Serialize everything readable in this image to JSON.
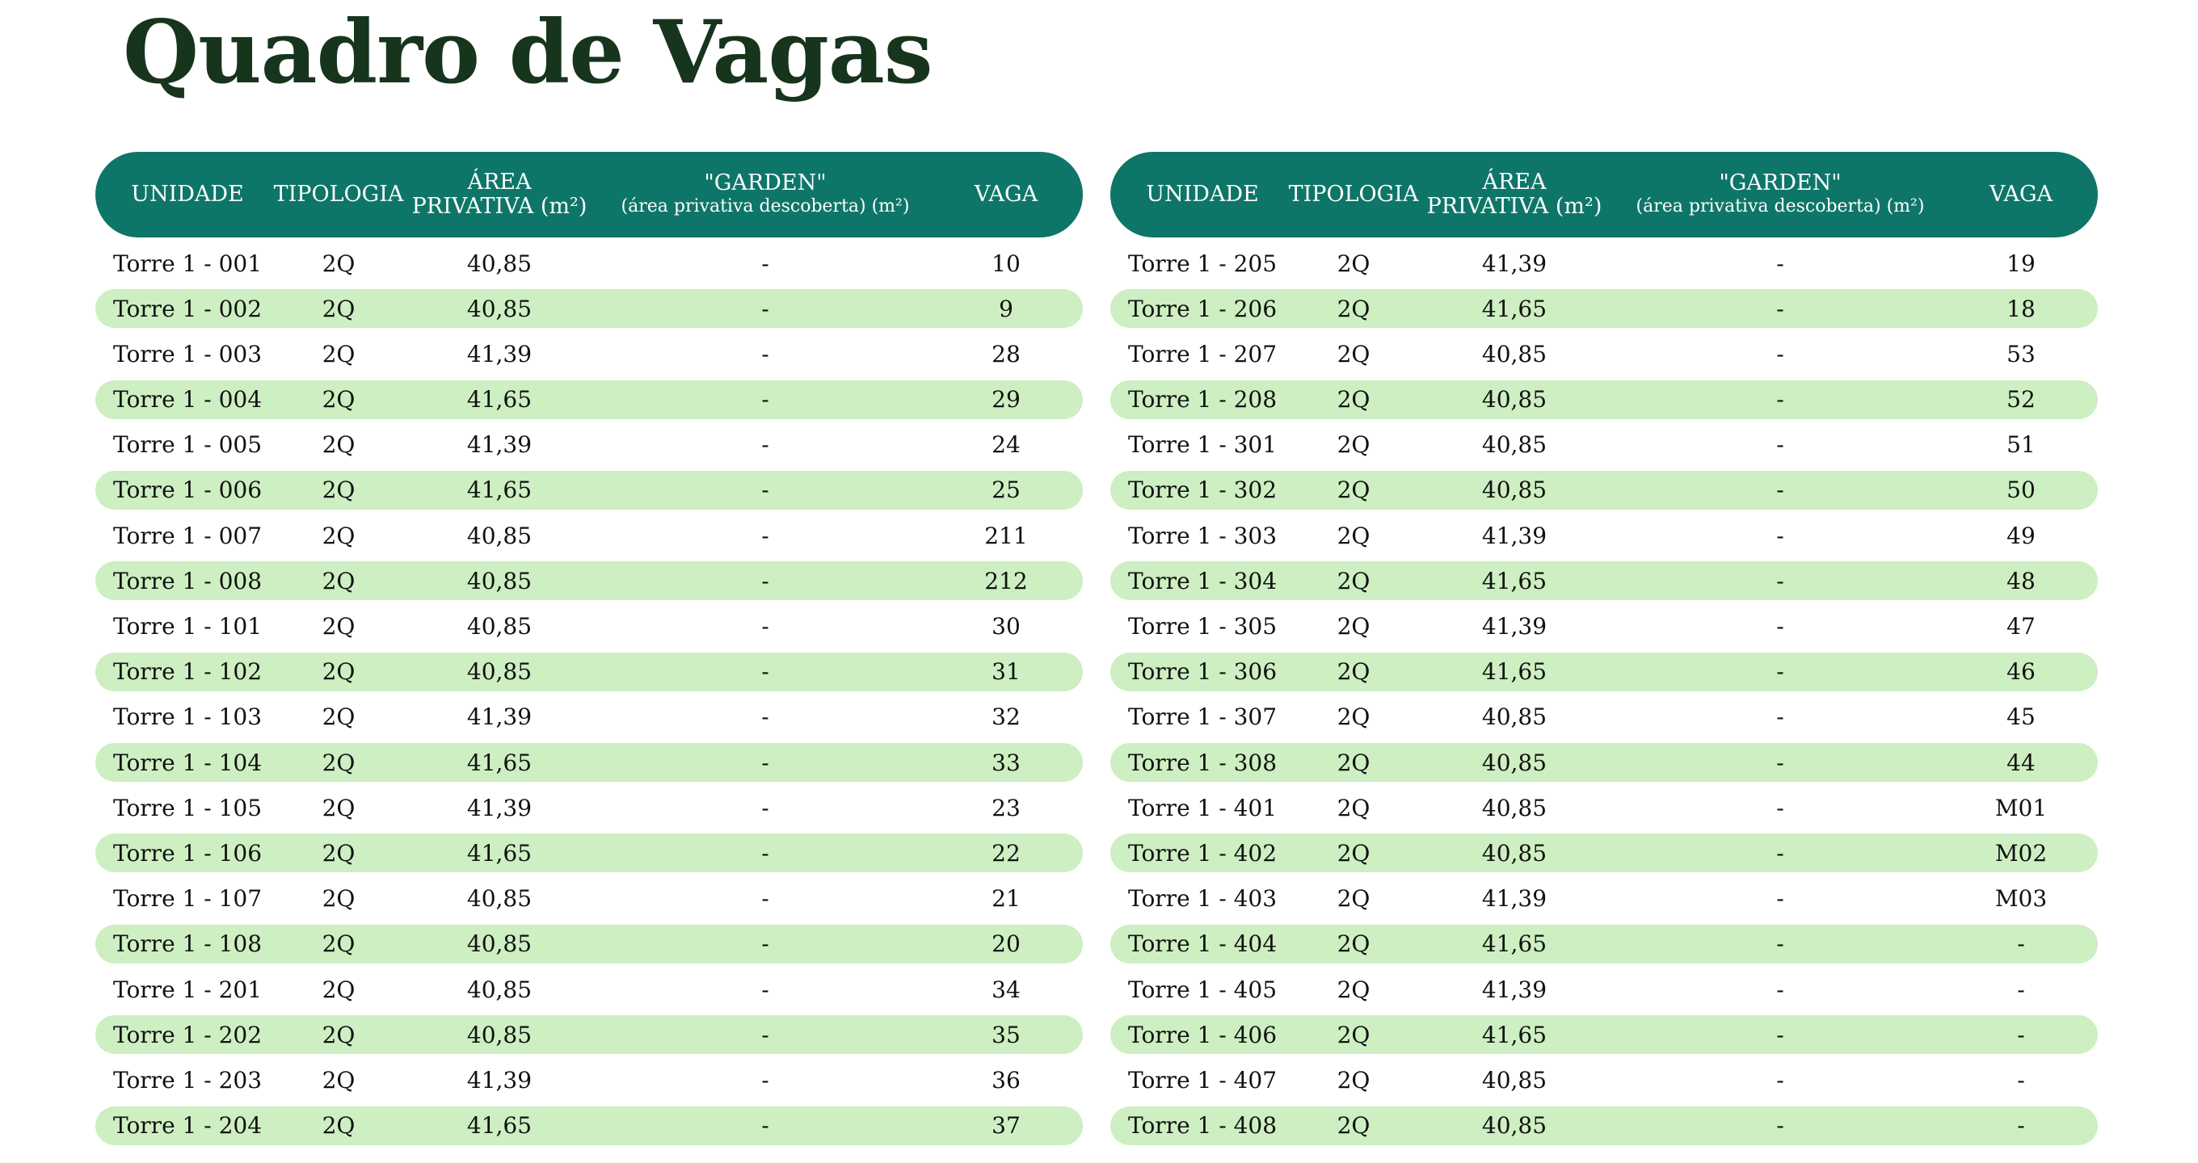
{
  "title": "Quadro de Vagas",
  "colors": {
    "header_bg": "#0e7668",
    "row_alt_bg": "#cdefc2",
    "title_color": "#17341d"
  },
  "headers": {
    "unidade": "UNIDADE",
    "tipologia": "TIPOLOGIA",
    "area_l1": "ÁREA",
    "area_l2": "PRIVATIVA (m²)",
    "garden_l1": "\"GARDEN\"",
    "garden_l2": "(área privativa descoberta) (m²)",
    "vaga": "VAGA"
  },
  "left_table": [
    {
      "unidade": "Torre 1 - 001",
      "tipologia": "2Q",
      "area": "40,85",
      "garden": "-",
      "vaga": "10"
    },
    {
      "unidade": "Torre 1 - 002",
      "tipologia": "2Q",
      "area": "40,85",
      "garden": "-",
      "vaga": "9"
    },
    {
      "unidade": "Torre 1 - 003",
      "tipologia": "2Q",
      "area": "41,39",
      "garden": "-",
      "vaga": "28"
    },
    {
      "unidade": "Torre 1 - 004",
      "tipologia": "2Q",
      "area": "41,65",
      "garden": "-",
      "vaga": "29"
    },
    {
      "unidade": "Torre 1 - 005",
      "tipologia": "2Q",
      "area": "41,39",
      "garden": "-",
      "vaga": "24"
    },
    {
      "unidade": "Torre 1 - 006",
      "tipologia": "2Q",
      "area": "41,65",
      "garden": "-",
      "vaga": "25"
    },
    {
      "unidade": "Torre 1 - 007",
      "tipologia": "2Q",
      "area": "40,85",
      "garden": "-",
      "vaga": "211"
    },
    {
      "unidade": "Torre 1 - 008",
      "tipologia": "2Q",
      "area": "40,85",
      "garden": "-",
      "vaga": "212"
    },
    {
      "unidade": "Torre 1 - 101",
      "tipologia": "2Q",
      "area": "40,85",
      "garden": "-",
      "vaga": "30"
    },
    {
      "unidade": "Torre 1 - 102",
      "tipologia": "2Q",
      "area": "40,85",
      "garden": "-",
      "vaga": "31"
    },
    {
      "unidade": "Torre 1 - 103",
      "tipologia": "2Q",
      "area": "41,39",
      "garden": "-",
      "vaga": "32"
    },
    {
      "unidade": "Torre 1 - 104",
      "tipologia": "2Q",
      "area": "41,65",
      "garden": "-",
      "vaga": "33"
    },
    {
      "unidade": "Torre 1 - 105",
      "tipologia": "2Q",
      "area": "41,39",
      "garden": "-",
      "vaga": "23"
    },
    {
      "unidade": "Torre 1 - 106",
      "tipologia": "2Q",
      "area": "41,65",
      "garden": "-",
      "vaga": "22"
    },
    {
      "unidade": "Torre 1 - 107",
      "tipologia": "2Q",
      "area": "40,85",
      "garden": "-",
      "vaga": "21"
    },
    {
      "unidade": "Torre 1 - 108",
      "tipologia": "2Q",
      "area": "40,85",
      "garden": "-",
      "vaga": "20"
    },
    {
      "unidade": "Torre 1 - 201",
      "tipologia": "2Q",
      "area": "40,85",
      "garden": "-",
      "vaga": "34"
    },
    {
      "unidade": "Torre 1 - 202",
      "tipologia": "2Q",
      "area": "40,85",
      "garden": "-",
      "vaga": "35"
    },
    {
      "unidade": "Torre 1 - 203",
      "tipologia": "2Q",
      "area": "41,39",
      "garden": "-",
      "vaga": "36"
    },
    {
      "unidade": "Torre 1 - 204",
      "tipologia": "2Q",
      "area": "41,65",
      "garden": "-",
      "vaga": "37"
    }
  ],
  "right_table": [
    {
      "unidade": "Torre 1 - 205",
      "tipologia": "2Q",
      "area": "41,39",
      "garden": "-",
      "vaga": "19"
    },
    {
      "unidade": "Torre 1 - 206",
      "tipologia": "2Q",
      "area": "41,65",
      "garden": "-",
      "vaga": "18"
    },
    {
      "unidade": "Torre 1 - 207",
      "tipologia": "2Q",
      "area": "40,85",
      "garden": "-",
      "vaga": "53"
    },
    {
      "unidade": "Torre 1 - 208",
      "tipologia": "2Q",
      "area": "40,85",
      "garden": "-",
      "vaga": "52"
    },
    {
      "unidade": "Torre 1 - 301",
      "tipologia": "2Q",
      "area": "40,85",
      "garden": "-",
      "vaga": "51"
    },
    {
      "unidade": "Torre 1 - 302",
      "tipologia": "2Q",
      "area": "40,85",
      "garden": "-",
      "vaga": "50"
    },
    {
      "unidade": "Torre 1 - 303",
      "tipologia": "2Q",
      "area": "41,39",
      "garden": "-",
      "vaga": "49"
    },
    {
      "unidade": "Torre 1 - 304",
      "tipologia": "2Q",
      "area": "41,65",
      "garden": "-",
      "vaga": "48"
    },
    {
      "unidade": "Torre 1 - 305",
      "tipologia": "2Q",
      "area": "41,39",
      "garden": "-",
      "vaga": "47"
    },
    {
      "unidade": "Torre 1 - 306",
      "tipologia": "2Q",
      "area": "41,65",
      "garden": "-",
      "vaga": "46"
    },
    {
      "unidade": "Torre 1 - 307",
      "tipologia": "2Q",
      "area": "40,85",
      "garden": "-",
      "vaga": "45"
    },
    {
      "unidade": "Torre 1 - 308",
      "tipologia": "2Q",
      "area": "40,85",
      "garden": "-",
      "vaga": "44"
    },
    {
      "unidade": "Torre 1 - 401",
      "tipologia": "2Q",
      "area": "40,85",
      "garden": "-",
      "vaga": "M01"
    },
    {
      "unidade": "Torre 1 - 402",
      "tipologia": "2Q",
      "area": "40,85",
      "garden": "-",
      "vaga": "M02"
    },
    {
      "unidade": "Torre 1 - 403",
      "tipologia": "2Q",
      "area": "41,39",
      "garden": "-",
      "vaga": "M03"
    },
    {
      "unidade": "Torre 1 - 404",
      "tipologia": "2Q",
      "area": "41,65",
      "garden": "-",
      "vaga": "-"
    },
    {
      "unidade": "Torre 1 - 405",
      "tipologia": "2Q",
      "area": "41,39",
      "garden": "-",
      "vaga": "-"
    },
    {
      "unidade": "Torre 1 - 406",
      "tipologia": "2Q",
      "area": "41,65",
      "garden": "-",
      "vaga": "-"
    },
    {
      "unidade": "Torre 1 - 407",
      "tipologia": "2Q",
      "area": "40,85",
      "garden": "-",
      "vaga": "-"
    },
    {
      "unidade": "Torre 1 - 408",
      "tipologia": "2Q",
      "area": "40,85",
      "garden": "-",
      "vaga": "-"
    }
  ]
}
